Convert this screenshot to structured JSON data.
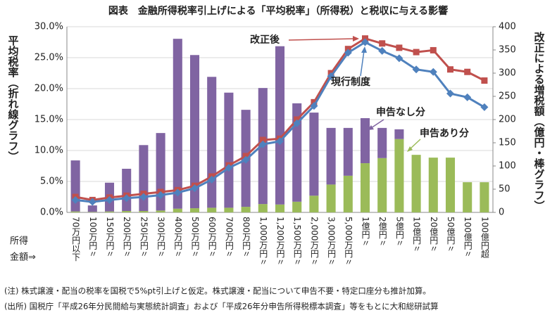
{
  "chart_data": {
    "type": "bar_line",
    "title": "図表　金融所得税率引上げによる「平均税率」（所得税）と税収に与える影響",
    "ylabel": "平均税率（折れ線グラフ）",
    "y2label": "改正による増税額（億円・棒グラフ）",
    "xlabel_lines": [
      "所得",
      "金額⇒"
    ],
    "categories": [
      "70万円以下",
      "100万円〃",
      "150万円〃",
      "200万円〃",
      "250万円〃",
      "300万円〃",
      "400万円〃",
      "500万円〃",
      "600万円〃",
      "700万円〃",
      "800万円〃",
      "1,000万円〃",
      "1,200万円〃",
      "1,500万円〃",
      "2,000万円〃",
      "3,000万円〃",
      "5,000万円〃",
      "1億円〃",
      "2億円〃",
      "5億円〃",
      "10億円〃",
      "20億円〃",
      "50億円〃",
      "100億円〃",
      "100億円超"
    ],
    "series": [
      {
        "name": "申告あり分",
        "kind": "bar",
        "axis": "y2",
        "color": "#9bbb59",
        "values": [
          2,
          1,
          2,
          3,
          3,
          4,
          8,
          9,
          10,
          10,
          12,
          18,
          17,
          23,
          36,
          60,
          79,
          106,
          117,
          158,
          124,
          118,
          118,
          65,
          65
        ]
      },
      {
        "name": "申告なし分",
        "kind": "bar",
        "axis": "y2",
        "color": "#8064a2",
        "values": [
          110,
          14,
          62,
          91,
          142,
          167,
          366,
          330,
          282,
          248,
          209,
          250,
          341,
          212,
          179,
          122,
          103,
          97,
          65,
          21,
          0,
          0,
          0,
          0,
          0
        ]
      },
      {
        "name": "改正後",
        "kind": "line",
        "color": "#c0504d",
        "marker": "square",
        "values": [
          2.5,
          2.0,
          2.4,
          2.7,
          3.0,
          3.3,
          3.6,
          4.3,
          5.8,
          7.6,
          9.1,
          11.7,
          11.9,
          15.0,
          17.8,
          22.5,
          26.4,
          28.1,
          27.3,
          26.6,
          25.9,
          26.2,
          23.1,
          22.7,
          21.3
        ]
      },
      {
        "name": "現行制度",
        "kind": "line",
        "color": "#4f81bd",
        "marker": "diamond",
        "values": [
          2.0,
          1.7,
          2.0,
          2.3,
          2.5,
          2.8,
          3.2,
          3.9,
          5.3,
          7.2,
          8.5,
          11.0,
          11.5,
          14.4,
          17.2,
          22.0,
          25.8,
          27.5,
          26.1,
          24.9,
          23.1,
          22.7,
          19.2,
          18.6,
          17.0
        ]
      }
    ],
    "ylim": [
      0,
      30
    ],
    "yticks": [
      {
        "value": 0,
        "label": "0.0%"
      },
      {
        "value": 5,
        "label": "5.0%"
      },
      {
        "value": 10,
        "label": "10.0%"
      },
      {
        "value": 15,
        "label": "15.0%"
      },
      {
        "value": 20,
        "label": "20.0%"
      },
      {
        "value": 25,
        "label": "25.0%"
      },
      {
        "value": 30,
        "label": "30.0%"
      }
    ],
    "y2lim": [
      0,
      400
    ],
    "y2ticks": [
      0,
      50,
      100,
      150,
      200,
      250,
      300,
      350,
      400
    ],
    "grid": true,
    "notes": [
      "(注) 株式譲渡・配当の税率を国税で5%pt引上げと仮定。株式譲渡・配当について申告不要・特定口座分も推計加算。",
      "(出所) 国税庁「平成26年分民間給与実態統計調査」および「平成26年分申告所得税標本調査」等をもとに大和総研試算"
    ]
  }
}
